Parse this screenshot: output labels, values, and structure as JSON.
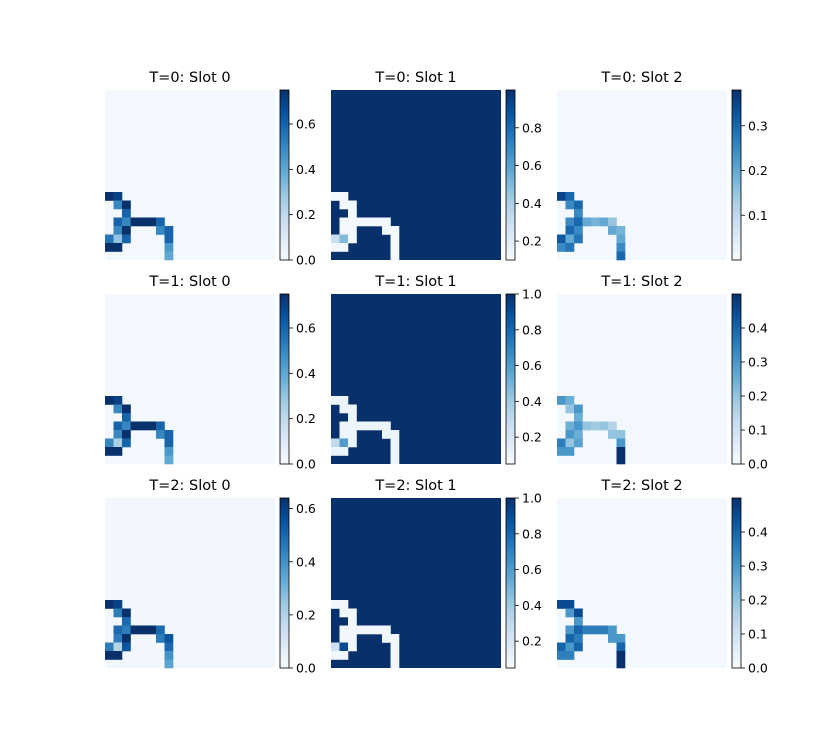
{
  "chart_data": {
    "type": "heatmap",
    "grid": {
      "rows": 3,
      "cols": 3
    },
    "image_size": 20,
    "colormap": "Blues",
    "colorbar": true,
    "axes_visible": false,
    "panels": [
      {
        "title": "T=0: Slot 0",
        "vmin": 0.0,
        "vmax": 0.75,
        "cbar_ticks": [
          "0.0",
          "0.2",
          "0.4",
          "0.6"
        ],
        "background": 0.02,
        "cells": [
          [
            12,
            0,
            0.75
          ],
          [
            12,
            1,
            0.7
          ],
          [
            13,
            1,
            0.5
          ],
          [
            13,
            2,
            0.75
          ],
          [
            14,
            2,
            0.6
          ],
          [
            15,
            1,
            0.6
          ],
          [
            15,
            2,
            0.5
          ],
          [
            15,
            3,
            0.75
          ],
          [
            15,
            4,
            0.75
          ],
          [
            15,
            5,
            0.75
          ],
          [
            15,
            6,
            0.6
          ],
          [
            16,
            1,
            0.5
          ],
          [
            16,
            2,
            0.75
          ],
          [
            16,
            6,
            0.5
          ],
          [
            16,
            7,
            0.6
          ],
          [
            17,
            0,
            0.55
          ],
          [
            17,
            1,
            0.3
          ],
          [
            17,
            2,
            0.6
          ],
          [
            17,
            7,
            0.6
          ],
          [
            18,
            0,
            0.75
          ],
          [
            18,
            1,
            0.75
          ],
          [
            18,
            7,
            0.45
          ],
          [
            19,
            7,
            0.4
          ]
        ]
      },
      {
        "title": "T=0: Slot 1",
        "vmin": 0.1,
        "vmax": 1.0,
        "cbar_ticks": [
          "0.2",
          "0.4",
          "0.6",
          "0.8"
        ],
        "background": 1.0,
        "cells": [
          [
            12,
            0,
            0.12
          ],
          [
            12,
            1,
            0.12
          ],
          [
            13,
            1,
            0.12
          ],
          [
            13,
            2,
            0.12
          ],
          [
            14,
            2,
            0.12
          ],
          [
            15,
            1,
            0.12
          ],
          [
            15,
            2,
            0.12
          ],
          [
            15,
            3,
            0.12
          ],
          [
            15,
            4,
            0.12
          ],
          [
            15,
            5,
            0.12
          ],
          [
            15,
            6,
            0.12
          ],
          [
            16,
            1,
            0.12
          ],
          [
            16,
            2,
            0.12
          ],
          [
            16,
            6,
            0.12
          ],
          [
            16,
            7,
            0.12
          ],
          [
            17,
            0,
            0.3
          ],
          [
            17,
            1,
            0.5
          ],
          [
            17,
            2,
            0.12
          ],
          [
            17,
            7,
            0.12
          ],
          [
            18,
            0,
            0.12
          ],
          [
            18,
            1,
            0.12
          ],
          [
            18,
            7,
            0.12
          ],
          [
            19,
            7,
            0.12
          ]
        ]
      },
      {
        "title": "T=0: Slot 2",
        "vmin": 0.0,
        "vmax": 0.38,
        "cbar_ticks": [
          "0.1",
          "0.2",
          "0.3"
        ],
        "background": 0.01,
        "cells": [
          [
            12,
            0,
            0.35
          ],
          [
            12,
            1,
            0.3
          ],
          [
            13,
            1,
            0.25
          ],
          [
            13,
            2,
            0.3
          ],
          [
            14,
            2,
            0.25
          ],
          [
            15,
            1,
            0.25
          ],
          [
            15,
            2,
            0.3
          ],
          [
            15,
            3,
            0.2
          ],
          [
            15,
            4,
            0.18
          ],
          [
            15,
            5,
            0.2
          ],
          [
            15,
            6,
            0.15
          ],
          [
            16,
            1,
            0.3
          ],
          [
            16,
            2,
            0.25
          ],
          [
            16,
            6,
            0.2
          ],
          [
            16,
            7,
            0.18
          ],
          [
            17,
            0,
            0.32
          ],
          [
            17,
            1,
            0.2
          ],
          [
            17,
            2,
            0.28
          ],
          [
            17,
            7,
            0.2
          ],
          [
            18,
            0,
            0.25
          ],
          [
            18,
            1,
            0.28
          ],
          [
            18,
            7,
            0.25
          ],
          [
            19,
            7,
            0.3
          ]
        ]
      },
      {
        "title": "T=1: Slot 0",
        "vmin": 0.0,
        "vmax": 0.75,
        "cbar_ticks": [
          "0.0",
          "0.2",
          "0.4",
          "0.6"
        ],
        "background": 0.02,
        "cells": [
          [
            12,
            0,
            0.75
          ],
          [
            12,
            1,
            0.7
          ],
          [
            13,
            1,
            0.5
          ],
          [
            13,
            2,
            0.75
          ],
          [
            14,
            2,
            0.6
          ],
          [
            15,
            1,
            0.6
          ],
          [
            15,
            2,
            0.5
          ],
          [
            15,
            3,
            0.75
          ],
          [
            15,
            4,
            0.75
          ],
          [
            15,
            5,
            0.75
          ],
          [
            15,
            6,
            0.6
          ],
          [
            16,
            1,
            0.5
          ],
          [
            16,
            2,
            0.75
          ],
          [
            16,
            6,
            0.5
          ],
          [
            16,
            7,
            0.6
          ],
          [
            17,
            0,
            0.5
          ],
          [
            17,
            1,
            0.25
          ],
          [
            17,
            2,
            0.6
          ],
          [
            17,
            7,
            0.6
          ],
          [
            18,
            0,
            0.75
          ],
          [
            18,
            1,
            0.75
          ],
          [
            18,
            7,
            0.45
          ],
          [
            19,
            7,
            0.4
          ]
        ]
      },
      {
        "title": "T=1: Slot 1",
        "vmin": 0.05,
        "vmax": 1.0,
        "cbar_ticks": [
          "0.2",
          "0.4",
          "0.6",
          "0.8",
          "1.0"
        ],
        "background": 1.0,
        "cells": [
          [
            12,
            0,
            0.1
          ],
          [
            12,
            1,
            0.1
          ],
          [
            13,
            1,
            0.1
          ],
          [
            13,
            2,
            0.1
          ],
          [
            14,
            2,
            0.1
          ],
          [
            15,
            1,
            0.1
          ],
          [
            15,
            2,
            0.1
          ],
          [
            15,
            3,
            0.1
          ],
          [
            15,
            4,
            0.1
          ],
          [
            15,
            5,
            0.1
          ],
          [
            15,
            6,
            0.1
          ],
          [
            16,
            1,
            0.1
          ],
          [
            16,
            2,
            0.1
          ],
          [
            16,
            6,
            0.1
          ],
          [
            16,
            7,
            0.1
          ],
          [
            17,
            0,
            0.3
          ],
          [
            17,
            1,
            0.6
          ],
          [
            17,
            2,
            0.1
          ],
          [
            17,
            7,
            0.1
          ],
          [
            18,
            0,
            0.1
          ],
          [
            18,
            1,
            0.1
          ],
          [
            18,
            7,
            0.1
          ],
          [
            19,
            7,
            0.1
          ]
        ]
      },
      {
        "title": "T=1: Slot 2",
        "vmin": 0.0,
        "vmax": 0.5,
        "cbar_ticks": [
          "0.0",
          "0.1",
          "0.2",
          "0.3",
          "0.4"
        ],
        "background": 0.01,
        "cells": [
          [
            12,
            0,
            0.3
          ],
          [
            12,
            1,
            0.25
          ],
          [
            13,
            1,
            0.2
          ],
          [
            13,
            2,
            0.3
          ],
          [
            14,
            2,
            0.25
          ],
          [
            15,
            1,
            0.25
          ],
          [
            15,
            2,
            0.3
          ],
          [
            15,
            3,
            0.2
          ],
          [
            15,
            4,
            0.18
          ],
          [
            15,
            5,
            0.2
          ],
          [
            15,
            6,
            0.15
          ],
          [
            16,
            1,
            0.3
          ],
          [
            16,
            2,
            0.25
          ],
          [
            16,
            6,
            0.2
          ],
          [
            16,
            7,
            0.2
          ],
          [
            17,
            0,
            0.35
          ],
          [
            17,
            1,
            0.2
          ],
          [
            17,
            2,
            0.28
          ],
          [
            17,
            7,
            0.3
          ],
          [
            18,
            0,
            0.3
          ],
          [
            18,
            1,
            0.3
          ],
          [
            18,
            7,
            0.5
          ],
          [
            19,
            7,
            0.5
          ]
        ]
      },
      {
        "title": "T=2: Slot 0",
        "vmin": 0.0,
        "vmax": 0.64,
        "cbar_ticks": [
          "0.0",
          "0.2",
          "0.4",
          "0.6"
        ],
        "background": 0.02,
        "cells": [
          [
            12,
            0,
            0.64
          ],
          [
            12,
            1,
            0.6
          ],
          [
            13,
            1,
            0.45
          ],
          [
            13,
            2,
            0.64
          ],
          [
            14,
            2,
            0.5
          ],
          [
            15,
            1,
            0.5
          ],
          [
            15,
            2,
            0.45
          ],
          [
            15,
            3,
            0.64
          ],
          [
            15,
            4,
            0.64
          ],
          [
            15,
            5,
            0.64
          ],
          [
            15,
            6,
            0.5
          ],
          [
            16,
            1,
            0.45
          ],
          [
            16,
            2,
            0.64
          ],
          [
            16,
            6,
            0.45
          ],
          [
            16,
            7,
            0.55
          ],
          [
            17,
            0,
            0.45
          ],
          [
            17,
            1,
            0.2
          ],
          [
            17,
            2,
            0.55
          ],
          [
            17,
            7,
            0.5
          ],
          [
            18,
            0,
            0.64
          ],
          [
            18,
            1,
            0.64
          ],
          [
            18,
            7,
            0.4
          ],
          [
            19,
            7,
            0.35
          ]
        ]
      },
      {
        "title": "T=2: Slot 1",
        "vmin": 0.05,
        "vmax": 1.0,
        "cbar_ticks": [
          "0.2",
          "0.4",
          "0.6",
          "0.8",
          "1.0"
        ],
        "background": 1.0,
        "cells": [
          [
            12,
            0,
            0.08
          ],
          [
            12,
            1,
            0.08
          ],
          [
            13,
            1,
            0.08
          ],
          [
            13,
            2,
            0.08
          ],
          [
            14,
            2,
            0.08
          ],
          [
            15,
            1,
            0.08
          ],
          [
            15,
            2,
            0.08
          ],
          [
            15,
            3,
            0.08
          ],
          [
            15,
            4,
            0.08
          ],
          [
            15,
            5,
            0.08
          ],
          [
            15,
            6,
            0.08
          ],
          [
            16,
            1,
            0.08
          ],
          [
            16,
            2,
            0.08
          ],
          [
            16,
            6,
            0.08
          ],
          [
            16,
            7,
            0.08
          ],
          [
            17,
            0,
            0.25
          ],
          [
            17,
            1,
            0.9
          ],
          [
            17,
            2,
            0.08
          ],
          [
            17,
            7,
            0.08
          ],
          [
            18,
            0,
            0.08
          ],
          [
            18,
            1,
            0.08
          ],
          [
            18,
            7,
            0.08
          ],
          [
            19,
            7,
            0.08
          ]
        ]
      },
      {
        "title": "T=2: Slot 2",
        "vmin": 0.0,
        "vmax": 0.5,
        "cbar_ticks": [
          "0.0",
          "0.1",
          "0.2",
          "0.3",
          "0.4"
        ],
        "background": 0.01,
        "cells": [
          [
            12,
            0,
            0.45
          ],
          [
            12,
            1,
            0.45
          ],
          [
            13,
            1,
            0.3
          ],
          [
            13,
            2,
            0.45
          ],
          [
            14,
            2,
            0.3
          ],
          [
            15,
            1,
            0.3
          ],
          [
            15,
            2,
            0.4
          ],
          [
            15,
            3,
            0.35
          ],
          [
            15,
            4,
            0.35
          ],
          [
            15,
            5,
            0.35
          ],
          [
            15,
            6,
            0.3
          ],
          [
            16,
            1,
            0.4
          ],
          [
            16,
            2,
            0.35
          ],
          [
            16,
            6,
            0.3
          ],
          [
            16,
            7,
            0.3
          ],
          [
            17,
            0,
            0.4
          ],
          [
            17,
            1,
            0.3
          ],
          [
            17,
            2,
            0.4
          ],
          [
            17,
            7,
            0.4
          ],
          [
            18,
            0,
            0.35
          ],
          [
            18,
            1,
            0.35
          ],
          [
            18,
            7,
            0.5
          ],
          [
            19,
            7,
            0.5
          ]
        ]
      }
    ]
  }
}
